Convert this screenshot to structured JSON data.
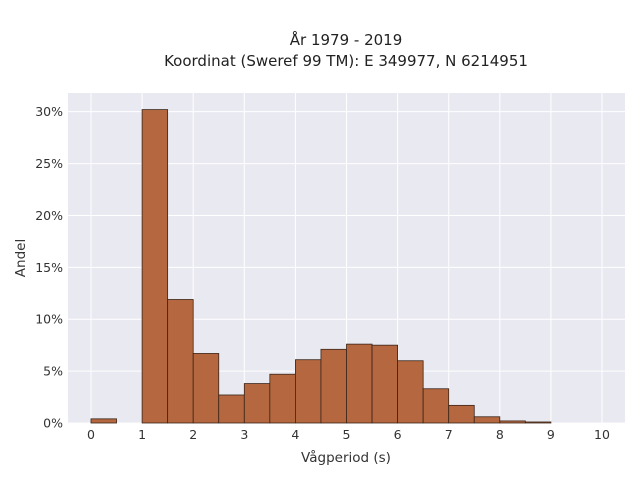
{
  "chart_data": {
    "type": "bar",
    "title": "År 1979 - 2019",
    "subtitle": "Koordinat (Sweref 99 TM): E 349977, N 6214951",
    "xlabel": "Vågperiod (s)",
    "ylabel": "Andel",
    "xlim": [
      -0.45,
      10.45
    ],
    "ylim": [
      0,
      31.8
    ],
    "x_ticks": [
      0,
      1,
      2,
      3,
      4,
      5,
      6,
      7,
      8,
      9,
      10
    ],
    "y_ticks": [
      0,
      5,
      10,
      15,
      20,
      25,
      30
    ],
    "y_tick_labels": [
      "0%",
      "5%",
      "10%",
      "15%",
      "20%",
      "25%",
      "30%"
    ],
    "grid": true,
    "bar_color": "#b5683f",
    "bar_edge_color": "#3a2418",
    "background_color": "#e9e9f1",
    "bin_width": 0.5,
    "bins": [
      0,
      0.5,
      1,
      1.5,
      2,
      2.5,
      3,
      3.5,
      4,
      4.5,
      5,
      5.5,
      6,
      6.5,
      7,
      7.5,
      8,
      8.5,
      9,
      9.5
    ],
    "values": [
      0.4,
      0,
      30.2,
      11.9,
      6.7,
      2.7,
      3.8,
      4.7,
      6.1,
      7.1,
      7.6,
      7.5,
      6.0,
      3.3,
      1.7,
      0.6,
      0.2,
      0.1,
      0,
      0
    ]
  }
}
